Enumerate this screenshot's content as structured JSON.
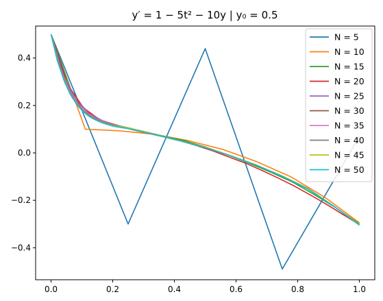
{
  "chart_data": {
    "type": "line",
    "title": "y′ = 1 − 5t² − 10y | y₀ = 0.5",
    "xlabel": "",
    "ylabel": "",
    "xlim": [
      -0.05,
      1.05
    ],
    "ylim": [
      -0.535,
      0.535
    ],
    "xticks": [
      0.0,
      0.2,
      0.4,
      0.6,
      0.8,
      1.0
    ],
    "xtick_labels": [
      "0.0",
      "0.2",
      "0.4",
      "0.6",
      "0.8",
      "1.0"
    ],
    "yticks": [
      -0.4,
      -0.2,
      0.0,
      0.2,
      0.4
    ],
    "ytick_labels": [
      "−0.4",
      "−0.2",
      "0.0",
      "0.2",
      "0.4"
    ],
    "grid": false,
    "legend_position": "top-right",
    "series": [
      {
        "name": "N = 5",
        "color": "#1f77b4",
        "x": [
          0,
          0.25,
          0.5,
          0.75,
          1.0
        ],
        "y": [
          0.5,
          -0.3,
          0.44,
          -0.49,
          0.07
        ]
      },
      {
        "name": "N = 10",
        "color": "#ff7f0e",
        "x": [
          0,
          0.111,
          0.222,
          0.333,
          0.444,
          0.556,
          0.667,
          0.778,
          0.889,
          1.0
        ],
        "y": [
          0.5,
          0.1,
          0.093,
          0.079,
          0.052,
          0.015,
          -0.037,
          -0.101,
          -0.188,
          -0.295
        ]
      },
      {
        "name": "N = 15",
        "color": "#2ca02c",
        "x": [
          0,
          0.071,
          0.143,
          0.214,
          0.286,
          0.357,
          0.429,
          0.5,
          0.571,
          0.643,
          0.714,
          0.786,
          0.857,
          0.929,
          1.0
        ],
        "y": [
          0.5,
          0.24,
          0.14,
          0.112,
          0.095,
          0.073,
          0.053,
          0.025,
          -0.007,
          -0.044,
          -0.082,
          -0.125,
          -0.178,
          -0.236,
          -0.3
        ]
      },
      {
        "name": "N = 20",
        "color": "#d62728",
        "x": [
          0,
          0.053,
          0.105,
          0.158,
          0.211,
          0.263,
          0.316,
          0.368,
          0.421,
          0.474,
          0.526,
          0.579,
          0.632,
          0.684,
          0.737,
          0.789,
          0.842,
          0.895,
          0.947,
          1.0
        ],
        "y": [
          0.5,
          0.29,
          0.19,
          0.14,
          0.118,
          0.098,
          0.082,
          0.067,
          0.05,
          0.03,
          0.008,
          -0.018,
          -0.044,
          -0.074,
          -0.106,
          -0.14,
          -0.178,
          -0.218,
          -0.26,
          -0.302
        ]
      },
      {
        "name": "N = 25",
        "color": "#9467bd",
        "x": [
          0,
          0.042,
          0.083,
          0.125,
          0.167,
          0.208,
          0.25,
          0.333,
          0.417,
          0.5,
          0.583,
          0.667,
          0.75,
          0.833,
          0.917,
          1.0
        ],
        "y": [
          0.5,
          0.32,
          0.22,
          0.165,
          0.136,
          0.118,
          0.104,
          0.078,
          0.052,
          0.023,
          -0.012,
          -0.052,
          -0.098,
          -0.15,
          -0.225,
          -0.303
        ]
      },
      {
        "name": "N = 30",
        "color": "#8c564b",
        "x": [
          0,
          0.034,
          0.069,
          0.103,
          0.138,
          0.172,
          0.207,
          0.25,
          0.333,
          0.417,
          0.5,
          0.583,
          0.667,
          0.75,
          0.833,
          0.917,
          1.0
        ],
        "y": [
          0.5,
          0.34,
          0.24,
          0.185,
          0.152,
          0.131,
          0.117,
          0.105,
          0.079,
          0.052,
          0.023,
          -0.012,
          -0.052,
          -0.098,
          -0.15,
          -0.225,
          -0.303
        ]
      },
      {
        "name": "N = 35",
        "color": "#e377c2",
        "x": [
          0,
          0.029,
          0.059,
          0.088,
          0.118,
          0.147,
          0.176,
          0.206,
          0.25,
          0.333,
          0.417,
          0.5,
          0.583,
          0.667,
          0.75,
          0.833,
          0.917,
          1.0
        ],
        "y": [
          0.5,
          0.36,
          0.265,
          0.205,
          0.168,
          0.145,
          0.13,
          0.118,
          0.106,
          0.079,
          0.052,
          0.023,
          -0.012,
          -0.052,
          -0.098,
          -0.15,
          -0.225,
          -0.303
        ]
      },
      {
        "name": "N = 40",
        "color": "#7f7f7f",
        "x": [
          0,
          0.026,
          0.051,
          0.077,
          0.103,
          0.128,
          0.154,
          0.179,
          0.205,
          0.25,
          0.333,
          0.417,
          0.5,
          0.583,
          0.667,
          0.75,
          0.833,
          0.917,
          1.0
        ],
        "y": [
          0.5,
          0.37,
          0.28,
          0.22,
          0.18,
          0.155,
          0.138,
          0.126,
          0.118,
          0.106,
          0.079,
          0.052,
          0.023,
          -0.012,
          -0.052,
          -0.098,
          -0.15,
          -0.225,
          -0.303
        ]
      },
      {
        "name": "N = 45",
        "color": "#bcbd22",
        "x": [
          0,
          0.023,
          0.045,
          0.068,
          0.091,
          0.114,
          0.136,
          0.159,
          0.182,
          0.205,
          0.25,
          0.333,
          0.417,
          0.5,
          0.583,
          0.667,
          0.75,
          0.833,
          0.917,
          1.0
        ],
        "y": [
          0.5,
          0.38,
          0.295,
          0.235,
          0.192,
          0.163,
          0.144,
          0.131,
          0.121,
          0.114,
          0.106,
          0.079,
          0.052,
          0.023,
          -0.012,
          -0.052,
          -0.098,
          -0.15,
          -0.225,
          -0.303
        ]
      },
      {
        "name": "N = 50",
        "color": "#17becf",
        "x": [
          0,
          0.02,
          0.041,
          0.061,
          0.082,
          0.102,
          0.122,
          0.143,
          0.163,
          0.184,
          0.204,
          0.25,
          0.333,
          0.417,
          0.5,
          0.583,
          0.667,
          0.75,
          0.833,
          0.917,
          1.0
        ],
        "y": [
          0.5,
          0.39,
          0.31,
          0.25,
          0.207,
          0.176,
          0.155,
          0.14,
          0.128,
          0.119,
          0.112,
          0.102,
          0.078,
          0.051,
          0.022,
          -0.013,
          -0.053,
          -0.099,
          -0.152,
          -0.225,
          -0.305
        ]
      }
    ]
  }
}
